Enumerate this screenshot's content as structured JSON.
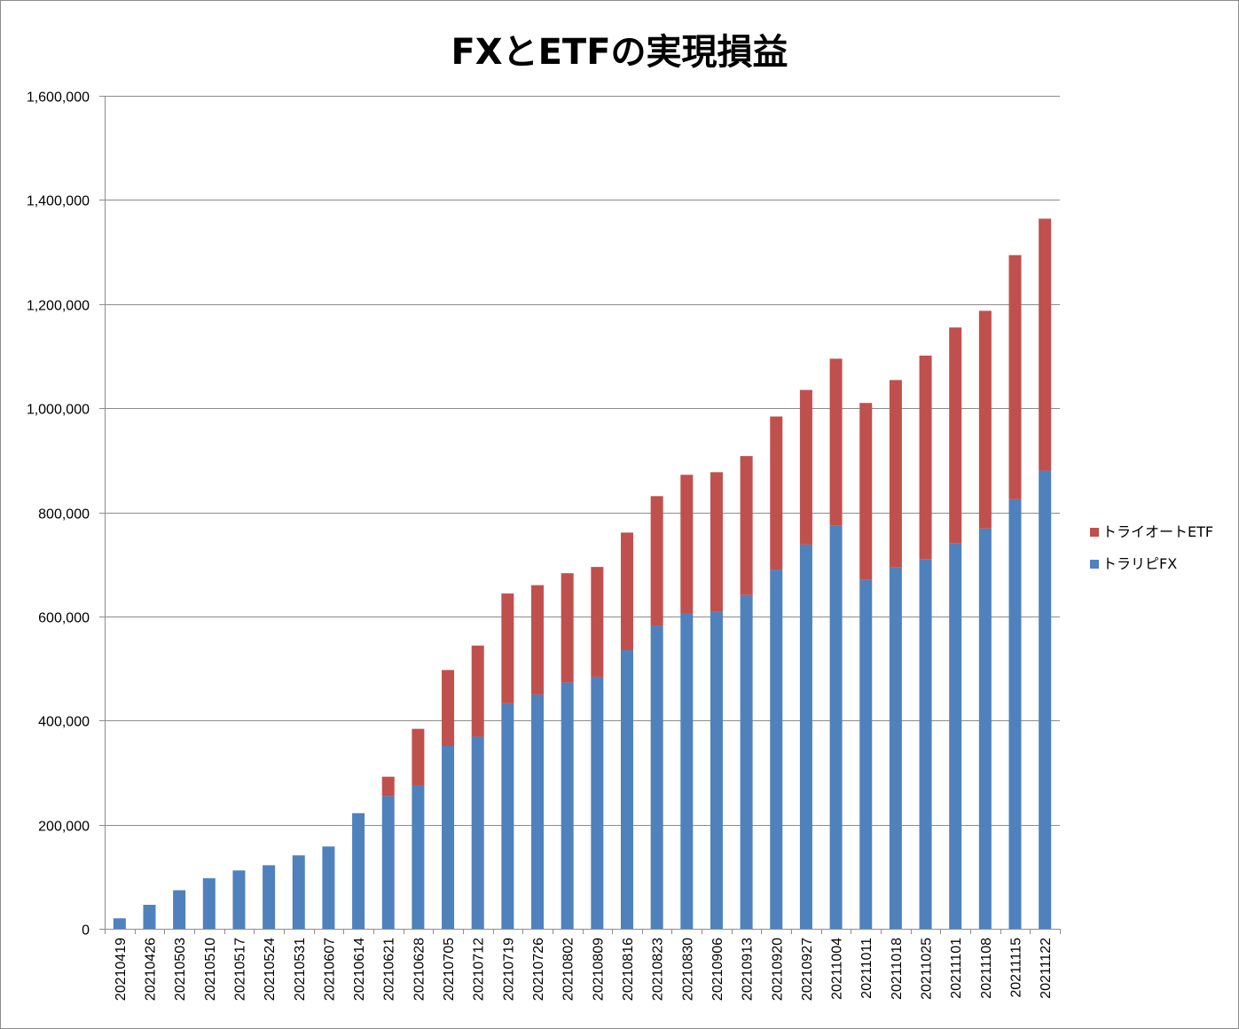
{
  "chart_data": {
    "type": "bar",
    "stacked": true,
    "title": "FXとETFの実現損益",
    "xlabel": "",
    "ylabel": "",
    "ylim": [
      0,
      1600000
    ],
    "yticks": [
      0,
      200000,
      400000,
      600000,
      800000,
      1000000,
      1200000,
      1400000,
      1600000
    ],
    "ytick_labels": [
      "0",
      "200,000",
      "400,000",
      "600,000",
      "800,000",
      "1,000,000",
      "1,200,000",
      "1,400,000",
      "1,600,000"
    ],
    "grid": true,
    "legend_position": "right",
    "categories": [
      "20210419",
      "20210426",
      "20210503",
      "20210510",
      "20210517",
      "20210524",
      "20210531",
      "20210607",
      "20210614",
      "20210621",
      "20210628",
      "20210705",
      "20210712",
      "20210719",
      "20210726",
      "20210802",
      "20210809",
      "20210816",
      "20210823",
      "20210830",
      "20210906",
      "20210913",
      "20210920",
      "20210927",
      "20211004",
      "20211011",
      "20211018",
      "20211025",
      "20211101",
      "20211108",
      "20211115",
      "20211122"
    ],
    "series": [
      {
        "name": "トラリピFX",
        "color": "#4f81bd",
        "values": [
          20000,
          46000,
          74000,
          97000,
          112000,
          122000,
          141000,
          158000,
          222000,
          255000,
          276000,
          351000,
          369000,
          433000,
          450000,
          473000,
          484000,
          535000,
          582000,
          605000,
          609000,
          641000,
          690000,
          738000,
          775000,
          670000,
          694000,
          710000,
          741000,
          769000,
          825000,
          880000
        ]
      },
      {
        "name": "トライオートETF",
        "color": "#c0504d",
        "values": [
          0,
          0,
          0,
          0,
          0,
          0,
          0,
          0,
          0,
          37000,
          108000,
          146000,
          175000,
          211000,
          210000,
          210000,
          211000,
          226000,
          249000,
          267000,
          268000,
          267000,
          294000,
          297000,
          320000,
          340000,
          360000,
          391000,
          414000,
          418000,
          469000,
          484000
        ]
      }
    ]
  }
}
